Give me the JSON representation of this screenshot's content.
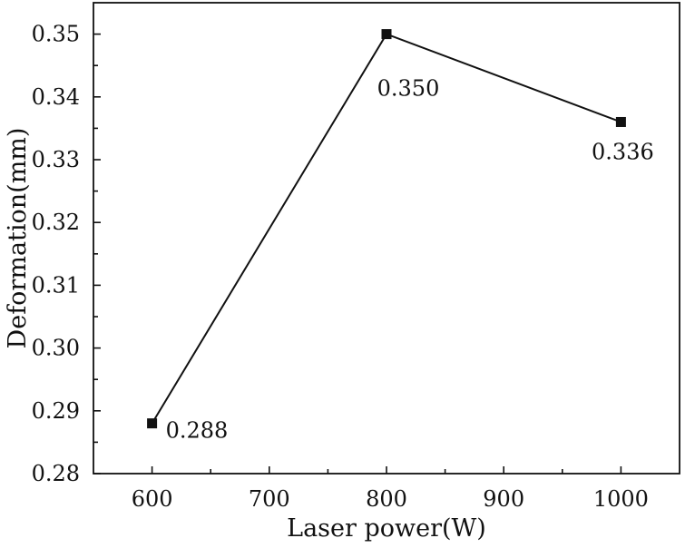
{
  "chart_data": {
    "type": "line",
    "xlabel": "Laser power(W)",
    "ylabel": "Deformation(mm)",
    "xlim": [
      550,
      1050
    ],
    "ylim": [
      0.28,
      0.355
    ],
    "x_ticks": [
      600,
      700,
      800,
      900,
      1000
    ],
    "y_ticks": [
      0.28,
      0.29,
      0.3,
      0.31,
      0.32,
      0.33,
      0.34,
      0.35
    ],
    "x_tick_labels": [
      "600",
      "700",
      "800",
      "900",
      "1000"
    ],
    "y_tick_labels": [
      "0.28",
      "0.29",
      "0.30",
      "0.31",
      "0.32",
      "0.33",
      "0.34",
      "0.35"
    ],
    "grid": false,
    "series": [
      {
        "x": [
          600,
          800,
          1000
        ],
        "y": [
          0.288,
          0.35,
          0.336
        ],
        "labels": [
          "0.288",
          "0.350",
          "0.336"
        ],
        "color": "#111111",
        "marker": "square"
      }
    ]
  }
}
